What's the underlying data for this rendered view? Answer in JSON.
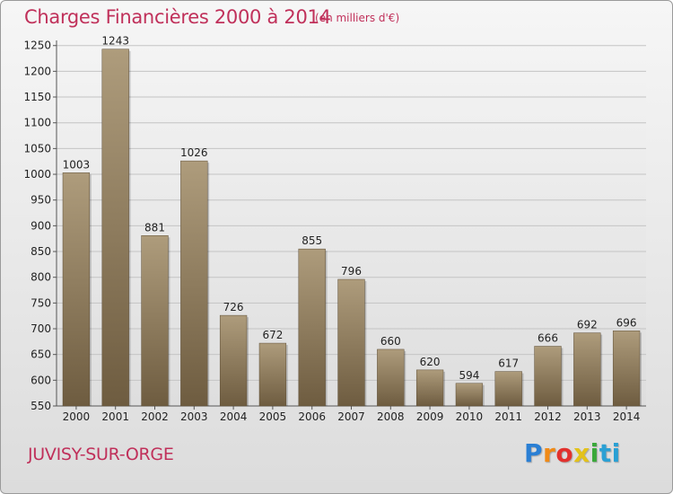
{
  "title": "Charges Financières 2000 à 2014",
  "unit_note": "(en milliers d'€)",
  "city": "JUVISY-SUR-ORGE",
  "logo": {
    "text": "Proxiti",
    "colors": [
      "#2a7fd4",
      "#f08a16",
      "#e2312d",
      "#e3c21a",
      "#3aa83a",
      "#2aa0d4"
    ]
  },
  "chart_data": {
    "type": "bar",
    "title": "Charges Financières 2000 à 2014",
    "categories": [
      "2000",
      "2001",
      "2002",
      "2003",
      "2004",
      "2005",
      "2006",
      "2007",
      "2008",
      "2009",
      "2010",
      "2011",
      "2012",
      "2013",
      "2014"
    ],
    "values": [
      1003,
      1243,
      881,
      1026,
      726,
      672,
      855,
      796,
      660,
      620,
      594,
      617,
      666,
      692,
      696
    ],
    "xlabel": "",
    "ylabel": "",
    "ylim": [
      550,
      1260
    ],
    "yticks": [
      550,
      600,
      650,
      700,
      750,
      800,
      850,
      900,
      950,
      1000,
      1050,
      1100,
      1150,
      1200,
      1250
    ],
    "grid": true,
    "bar_color": "#8a7658"
  }
}
